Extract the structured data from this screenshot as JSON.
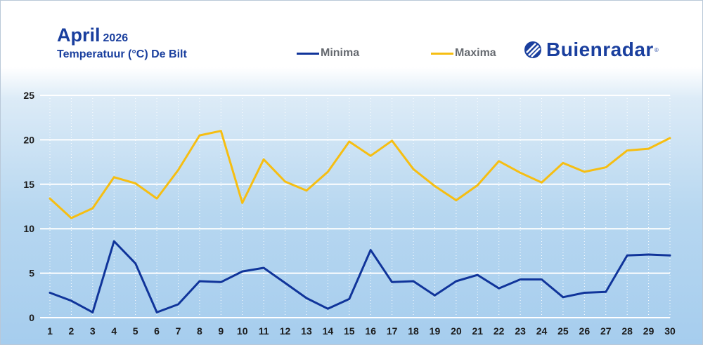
{
  "header": {
    "title": "April",
    "year": "2026",
    "subtitle": "Temperatuur (°C) De Bilt"
  },
  "legend": [
    {
      "label": "Minima",
      "color": "#10349a"
    },
    {
      "label": "Maxima",
      "color": "#f6be12"
    }
  ],
  "logo": {
    "name": "Buienradar",
    "mark": "®",
    "icon": "buienradar-logo-icon"
  },
  "chart_data": {
    "type": "line",
    "title": "April 2026",
    "subtitle": "Temperatuur (°C) De Bilt",
    "xlabel": "",
    "ylabel": "",
    "x": [
      1,
      2,
      3,
      4,
      5,
      6,
      7,
      8,
      9,
      10,
      11,
      12,
      13,
      14,
      15,
      16,
      17,
      18,
      19,
      20,
      21,
      22,
      23,
      24,
      25,
      26,
      27,
      28,
      29,
      30
    ],
    "ylim": [
      0,
      25
    ],
    "yticks": [
      0,
      5,
      10,
      15,
      20,
      25
    ],
    "grid": true,
    "legend_position": "top-center",
    "series": [
      {
        "name": "Minima",
        "color": "#10349a",
        "values": [
          2.8,
          1.9,
          0.6,
          8.6,
          6.1,
          0.6,
          1.5,
          4.1,
          4.0,
          5.2,
          5.6,
          3.9,
          2.2,
          1.0,
          2.1,
          7.6,
          4.0,
          4.1,
          2.5,
          4.1,
          4.8,
          3.3,
          4.3,
          4.3,
          2.3,
          2.8,
          2.9,
          7.0,
          7.1,
          7.0
        ]
      },
      {
        "name": "Maxima",
        "color": "#f6be12",
        "values": [
          13.4,
          11.2,
          12.3,
          15.8,
          15.1,
          13.4,
          16.6,
          20.5,
          21.0,
          12.9,
          17.8,
          15.3,
          14.3,
          16.4,
          19.8,
          18.2,
          19.9,
          16.7,
          14.8,
          13.2,
          14.9,
          17.6,
          16.3,
          15.2,
          17.4,
          16.4,
          16.9,
          18.8,
          19.0,
          20.2
        ]
      }
    ]
  }
}
